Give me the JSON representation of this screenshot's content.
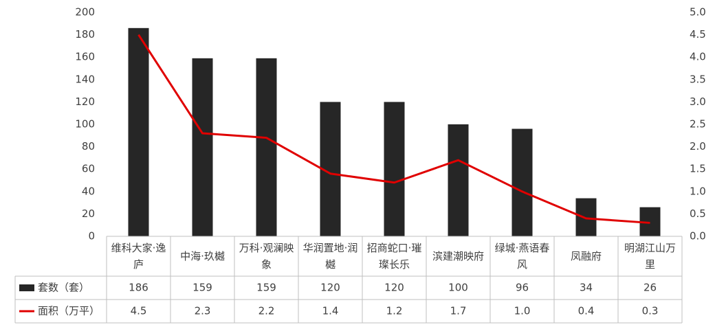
{
  "chart_data": {
    "type": "bar_line_table",
    "categories": [
      "维科大家·逸庐",
      "中海·玖樾",
      "万科·观澜映象",
      "华润置地·润樾",
      "招商蛇口·璀璨长乐",
      "滨建潮映府",
      "绿城·燕语春风",
      "凤融府",
      "明湖江山万里"
    ],
    "series": [
      {
        "name": "套数（套）",
        "type": "bar",
        "color": "#262626",
        "values": [
          186,
          159,
          159,
          120,
          120,
          100,
          96,
          34,
          26
        ]
      },
      {
        "name": "面积（万平）",
        "type": "line",
        "axis": "y2",
        "color": "#e00000",
        "values": [
          4.5,
          2.3,
          2.2,
          1.4,
          1.2,
          1.7,
          1.0,
          0.4,
          0.3
        ],
        "value_labels": [
          "4.5",
          "2.3",
          "2.2",
          "1.4",
          "1.2",
          "1.7",
          "1.0",
          "0.4",
          "0.3"
        ]
      }
    ],
    "ylim": [
      0,
      200
    ],
    "yticks": [
      0,
      20,
      40,
      60,
      80,
      100,
      120,
      140,
      160,
      180,
      200
    ],
    "y2lim": [
      0,
      5
    ],
    "y2ticks": [
      {
        "value": 0,
        "label": "0.0"
      },
      0.5,
      {
        "value": 1,
        "label": "1.0"
      },
      1.5,
      {
        "value": 2,
        "label": "2.0"
      },
      2.5,
      {
        "value": 3,
        "label": "3.0"
      },
      3.5,
      {
        "value": 4,
        "label": "4.0"
      },
      4.5,
      {
        "value": 5,
        "label": "5.0"
      }
    ],
    "data_table": true
  }
}
